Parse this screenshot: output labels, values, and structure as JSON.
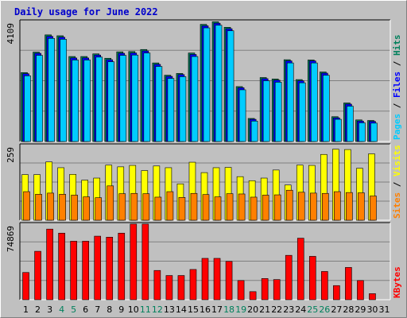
{
  "chart_data": {
    "type": "bar",
    "title": "Daily usage for June 2022",
    "categories": [
      "1",
      "2",
      "3",
      "4",
      "5",
      "6",
      "7",
      "8",
      "9",
      "10",
      "11",
      "12",
      "13",
      "14",
      "15",
      "16",
      "17",
      "18",
      "19",
      "20",
      "21",
      "22",
      "23",
      "24",
      "25",
      "26",
      "27",
      "28",
      "29",
      "30",
      "31"
    ],
    "weekend_days": [
      "4",
      "5",
      "11",
      "12",
      "18",
      "19",
      "25",
      "26"
    ],
    "panels": {
      "top": {
        "max_label": "4109",
        "ylim": [
          0,
          4109
        ],
        "legend": [
          "Hits",
          "Files",
          "Pages"
        ],
        "series": [
          {
            "name": "Hits",
            "color": "#00805c",
            "values": [
              2360,
              3060,
              3650,
              3620,
              2910,
              2910,
              3000,
              2850,
              3070,
              3080,
              3150,
              2690,
              2270,
              2330,
              3030,
              4010,
              4100,
              3910,
              1880,
              790,
              2190,
              2140,
              2800,
              2120,
              2790,
              2380,
              850,
              1320,
              740,
              720,
              null
            ]
          },
          {
            "name": "Files",
            "color": "#0000ff",
            "values": [
              2320,
              3020,
              3600,
              3570,
              2860,
              2860,
              2960,
              2800,
              3020,
              3030,
              3100,
              2640,
              2230,
              2290,
              2980,
              3960,
              4050,
              3860,
              1840,
              760,
              2150,
              2100,
              2760,
              2080,
              2760,
              2340,
              810,
              1280,
              700,
              690,
              null
            ]
          },
          {
            "name": "Pages",
            "color": "#00ccff",
            "values": [
              2250,
              2950,
              3530,
              3500,
              2790,
              2790,
              2890,
              2730,
              2950,
              2960,
              3030,
              2570,
              2160,
              2220,
              2910,
              3890,
              3980,
              3790,
              1770,
              700,
              2080,
              2030,
              2690,
              2010,
              2690,
              2270,
              760,
              1210,
              640,
              630,
              null
            ]
          }
        ]
      },
      "middle": {
        "max_label": "259",
        "ylim": [
          0,
          259
        ],
        "legend": [
          "Visits",
          "Sites"
        ],
        "series": [
          {
            "name": "Visits",
            "color": "#ffff00",
            "values": [
              158,
              158,
              202,
              182,
              159,
              139,
              146,
              191,
              185,
              190,
              172,
              188,
              182,
              126,
              201,
              165,
              182,
              183,
              151,
              137,
              146,
              174,
              122,
              191,
              190,
              228,
              246,
              245,
              180,
              230,
              null
            ]
          },
          {
            "name": "Sites",
            "color": "#ff8000",
            "values": [
              99,
              90,
              94,
              90,
              87,
              81,
              78,
              119,
              92,
              93,
              92,
              80,
              99,
              79,
              93,
              89,
              81,
              92,
              91,
              80,
              87,
              88,
              104,
              97,
              94,
              93,
              99,
              96,
              95,
              84,
              null
            ]
          }
        ]
      },
      "bottom": {
        "max_label": "74869",
        "ylim": [
          0,
          74869
        ],
        "legend": [
          "KBytes"
        ],
        "series": [
          {
            "name": "KBytes",
            "color": "#ff0000",
            "values": [
              27000,
              48000,
              70000,
              66000,
              58000,
              58000,
              63000,
              62000,
              66000,
              75000,
              75000,
              29000,
              24000,
              24000,
              30000,
              41000,
              41000,
              38000,
              19000,
              8000,
              21000,
              20000,
              44000,
              61000,
              43000,
              28000,
              14000,
              32000,
              19000,
              6000,
              null
            ]
          }
        ]
      }
    }
  }
}
